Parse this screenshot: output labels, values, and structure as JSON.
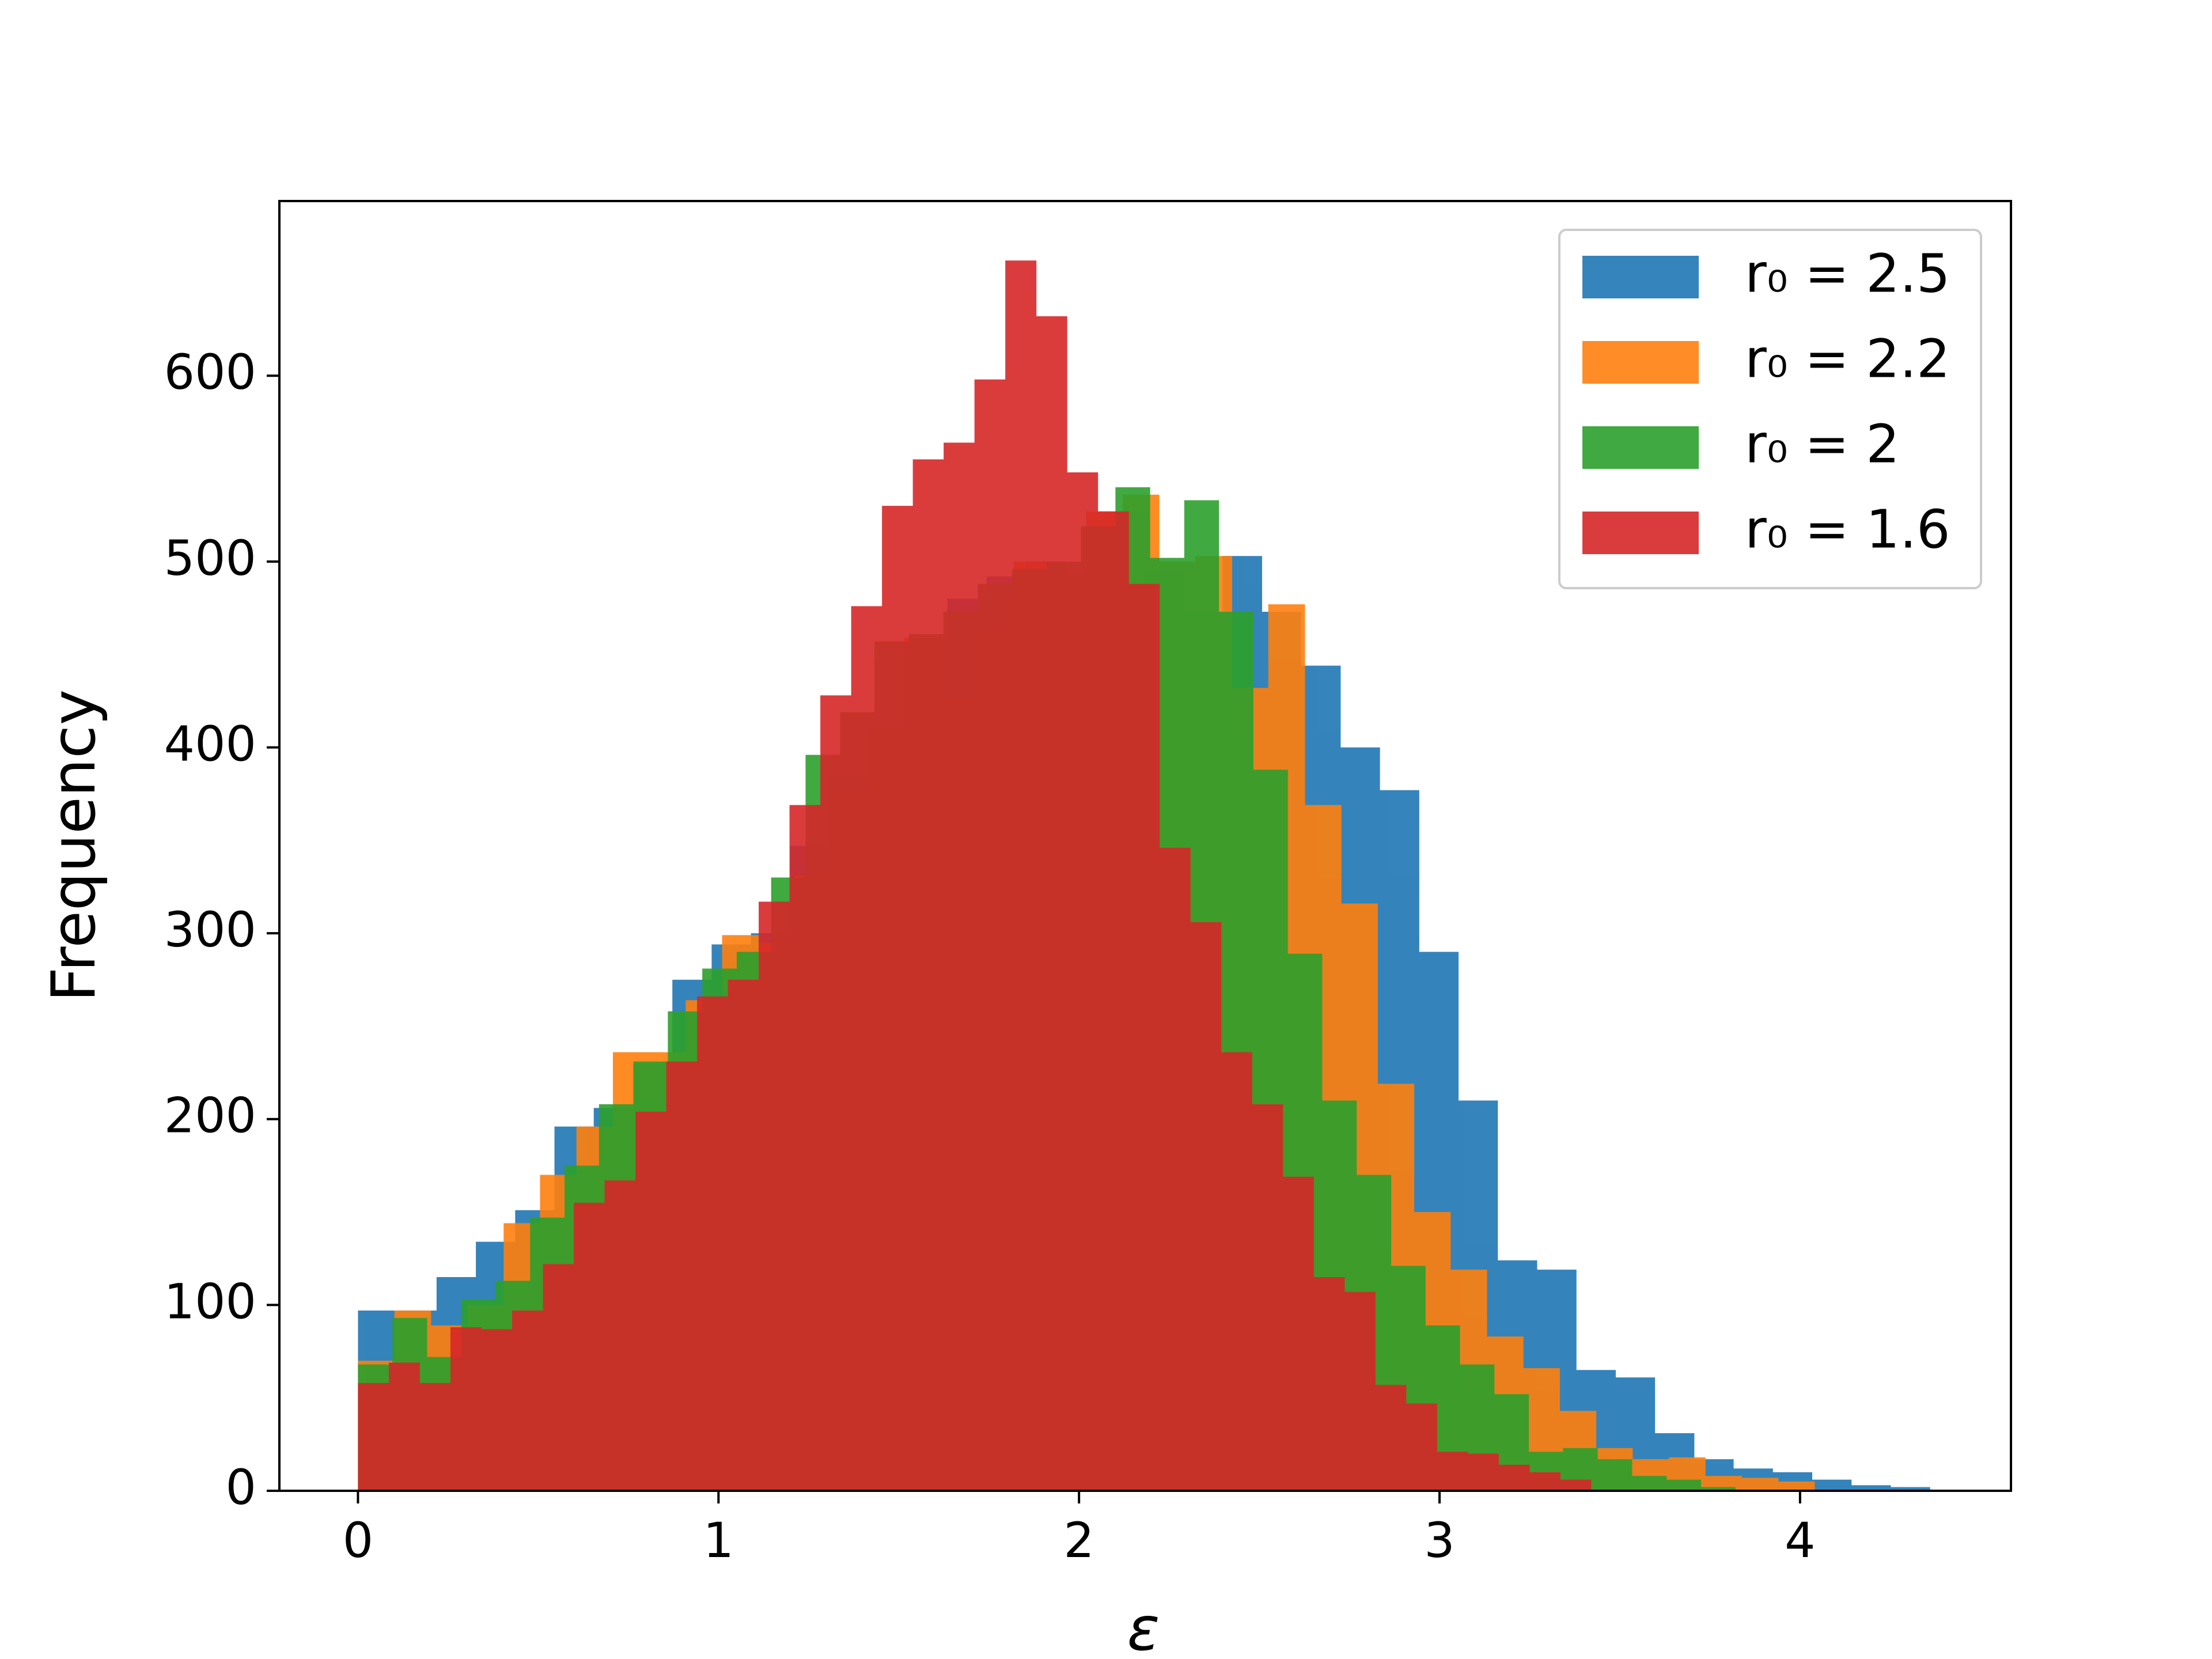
{
  "chart_data": {
    "type": "histogram",
    "xlabel": "ε",
    "ylabel": "Frequency",
    "xlim": [
      -0.218,
      4.585
    ],
    "ylim": [
      0,
      694
    ],
    "xticks": [
      0,
      1,
      2,
      3,
      4
    ],
    "yticks": [
      0,
      100,
      200,
      300,
      400,
      500,
      600
    ],
    "legend": "upper right",
    "opacity": 0.9,
    "series": [
      {
        "name": "r₀ = 2.5",
        "color": "#1f77b4",
        "bins": [
          0,
          0.109,
          0.218,
          0.327,
          0.436,
          0.545,
          0.654,
          0.763,
          0.872,
          0.981,
          1.09,
          1.199,
          1.308,
          1.417,
          1.526,
          1.635,
          1.744,
          1.853,
          1.962,
          2.071,
          2.18,
          2.289,
          2.398,
          2.507,
          2.616,
          2.725,
          2.834,
          2.943,
          3.052,
          3.161,
          3.27,
          3.379,
          3.488,
          3.597,
          3.706,
          3.815,
          3.924,
          4.033,
          4.142,
          4.251,
          4.36
        ],
        "values": [
          97,
          97,
          115,
          134,
          151,
          196,
          206,
          230,
          275,
          294,
          300,
          347,
          384,
          411,
          457,
          480,
          492,
          500,
          477,
          488,
          496,
          473,
          503,
          473,
          444,
          400,
          377,
          290,
          210,
          124,
          119,
          65,
          61,
          31,
          17,
          12,
          10,
          6,
          3,
          2
        ]
      },
      {
        "name": "r₀ = 2.2",
        "color": "#ff7f0e",
        "bins": [
          0,
          0.101,
          0.202,
          0.303,
          0.404,
          0.505,
          0.606,
          0.707,
          0.808,
          0.909,
          1.01,
          1.111,
          1.212,
          1.313,
          1.414,
          1.515,
          1.616,
          1.717,
          1.818,
          1.919,
          2.02,
          2.121,
          2.222,
          2.323,
          2.424,
          2.525,
          2.626,
          2.727,
          2.828,
          2.929,
          3.03,
          3.131,
          3.232,
          3.333,
          3.434,
          3.535,
          3.636,
          3.737,
          3.838,
          3.939,
          4.04
        ],
        "values": [
          70,
          97,
          89,
          100,
          144,
          170,
          196,
          236,
          236,
          264,
          299,
          295,
          331,
          377,
          411,
          459,
          427,
          465,
          500,
          492,
          527,
          536,
          500,
          503,
          432,
          477,
          369,
          316,
          219,
          150,
          119,
          83,
          66,
          43,
          23,
          17,
          18,
          8,
          7,
          5
        ]
      },
      {
        "name": "r₀ = 2",
        "color": "#2ca02c",
        "bins": [
          0,
          0.0955,
          0.191,
          0.2865,
          0.382,
          0.4775,
          0.573,
          0.6685,
          0.764,
          0.8595,
          0.955,
          1.0505,
          1.146,
          1.2415,
          1.337,
          1.4325,
          1.528,
          1.6235,
          1.719,
          1.8145,
          1.91,
          2.0055,
          2.101,
          2.1965,
          2.292,
          2.3875,
          2.483,
          2.5785,
          2.674,
          2.7695,
          2.865,
          2.9605,
          3.056,
          3.1515,
          3.247,
          3.3425,
          3.438,
          3.5335,
          3.629,
          3.7245,
          3.82
        ],
        "values": [
          68,
          93,
          72,
          103,
          113,
          147,
          175,
          208,
          231,
          258,
          281,
          290,
          330,
          396,
          419,
          457,
          461,
          473,
          488,
          496,
          500,
          519,
          540,
          502,
          533,
          473,
          388,
          289,
          210,
          170,
          121,
          89,
          68,
          52,
          21,
          23,
          17,
          8,
          6,
          2
        ]
      },
      {
        "name": "r₀ = 1.6",
        "color": "#d62728",
        "bins": [
          0,
          0.0855,
          0.171,
          0.2565,
          0.342,
          0.4275,
          0.513,
          0.5985,
          0.684,
          0.7695,
          0.855,
          0.9405,
          1.026,
          1.1115,
          1.197,
          1.2825,
          1.368,
          1.4535,
          1.539,
          1.6245,
          1.71,
          1.7955,
          1.881,
          1.9665,
          2.052,
          2.1375,
          2.223,
          2.3085,
          2.394,
          2.4795,
          2.565,
          2.6505,
          2.736,
          2.8215,
          2.907,
          2.9925,
          3.078,
          3.1635,
          3.249,
          3.3345,
          3.42
        ],
        "values": [
          58,
          69,
          58,
          88,
          87,
          97,
          122,
          155,
          167,
          204,
          231,
          266,
          275,
          317,
          369,
          428,
          476,
          530,
          555,
          564,
          598,
          662,
          632,
          548,
          527,
          488,
          346,
          306,
          236,
          208,
          169,
          115,
          107,
          57,
          47,
          21,
          20,
          14,
          10,
          6
        ]
      }
    ]
  }
}
